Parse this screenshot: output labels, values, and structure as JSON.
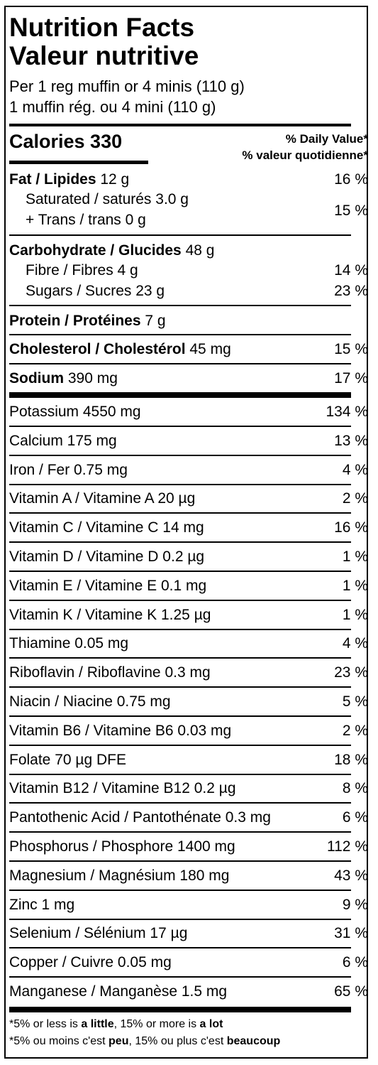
{
  "title_en": "Nutrition Facts",
  "title_fr": "Valeur nutritive",
  "serving_en": "Per 1 reg muffin or 4 minis (110 g)",
  "serving_fr": "1 muffin rég. ou 4 mini (110 g)",
  "calories_label": "Calories 330",
  "dv_header_en": "% Daily Value*",
  "dv_header_fr": "% valeur quotidienne*",
  "fat": {
    "name": "Fat / Lipides",
    "amount": " 12 g",
    "pct": "16 %"
  },
  "sat": {
    "line1": "Saturated / saturés 3.0 g",
    "line2": "+ Trans / trans 0 g",
    "pct": "15 %"
  },
  "carb": {
    "name": "Carbohydrate / Glucides",
    "amount": " 48 g"
  },
  "fibre": {
    "label": "Fibre / Fibres 4 g",
    "pct": "14 %"
  },
  "sugars": {
    "label": "Sugars / Sucres 23 g",
    "pct": "23 %"
  },
  "protein": {
    "name": "Protein / Protéines",
    "amount": " 7 g"
  },
  "cholesterol": {
    "name": "Cholesterol / Cholestérol",
    "amount": " 45 mg",
    "pct": "15 %"
  },
  "sodium": {
    "name": "Sodium",
    "amount": " 390 mg",
    "pct": "17 %"
  },
  "micros": [
    {
      "label": "Potassium 4550 mg",
      "pct": "134 %"
    },
    {
      "label": "Calcium 175 mg",
      "pct": "13 %"
    },
    {
      "label": "Iron / Fer 0.75 mg",
      "pct": "4 %"
    },
    {
      "label": "Vitamin A / Vitamine A 20 µg",
      "pct": "2 %"
    },
    {
      "label": "Vitamin C / Vitamine C 14 mg",
      "pct": "16 %"
    },
    {
      "label": "Vitamin D / Vitamine D 0.2 µg",
      "pct": "1 %"
    },
    {
      "label": "Vitamin E / Vitamine E 0.1 mg",
      "pct": "1 %"
    },
    {
      "label": "Vitamin K / Vitamine K 1.25 µg",
      "pct": "1 %"
    },
    {
      "label": "Thiamine 0.05 mg",
      "pct": "4 %"
    },
    {
      "label": "Riboflavin / Riboflavine 0.3 mg",
      "pct": "23 %"
    },
    {
      "label": "Niacin / Niacine 0.75 mg",
      "pct": "5 %"
    },
    {
      "label": "Vitamin B6 / Vitamine B6 0.03 mg",
      "pct": "2 %"
    },
    {
      "label": "Folate 70 µg DFE",
      "pct": "18 %"
    },
    {
      "label": "Vitamin B12 / Vitamine B12 0.2 µg",
      "pct": "8 %"
    },
    {
      "label": "Pantothenic Acid / Pantothénate 0.3 mg",
      "pct": "6 %"
    },
    {
      "label": "Phosphorus / Phosphore 1400 mg",
      "pct": "112 %"
    },
    {
      "label": "Magnesium / Magnésium 180 mg",
      "pct": "43 %"
    },
    {
      "label": "Zinc 1 mg",
      "pct": "9 %"
    },
    {
      "label": "Selenium / Sélénium 17 µg",
      "pct": "31 %"
    },
    {
      "label": "Copper / Cuivre 0.05 mg",
      "pct": "6 %"
    },
    {
      "label": "Manganese / Manganèse 1.5 mg",
      "pct": "65 %"
    }
  ],
  "footnote_en": {
    "a": "*5% or less is ",
    "b": "a little",
    "c": ", 15% or more is ",
    "d": "a lot"
  },
  "footnote_fr": {
    "a": "*5% ou moins c'est ",
    "b": "peu",
    "c": ", 15% ou plus c'est ",
    "d": "beaucoup"
  }
}
